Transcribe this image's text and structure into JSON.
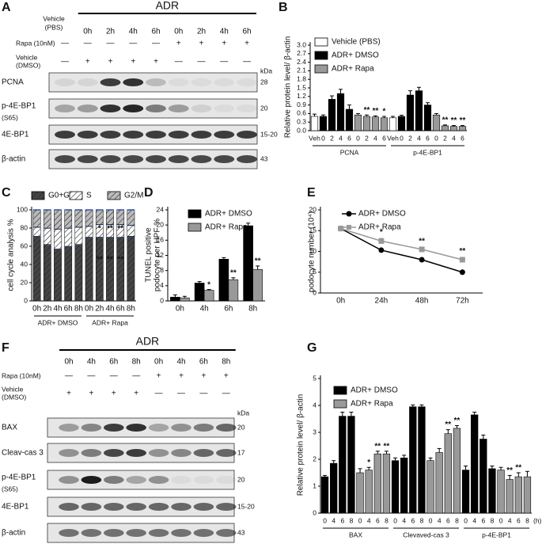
{
  "panel_labels": [
    "A",
    "B",
    "C",
    "D",
    "E",
    "F",
    "G"
  ],
  "blots": [
    {
      "header": "ADR",
      "first_lane": [
        "Vehicle",
        "(PBS)"
      ],
      "lanes": [
        "0h",
        "2h",
        "4h",
        "6h",
        "0h",
        "2h",
        "4h",
        "6h"
      ],
      "treatments": [
        {
          "label": [
            "Rapa (10nM)"
          ],
          "signs": [
            "—",
            "—",
            "—",
            "—",
            "—",
            "+",
            "+",
            "+",
            "+"
          ]
        },
        {
          "label": [
            "Vehicle",
            "(DMSO)"
          ],
          "signs": [
            "—",
            "+",
            "+",
            "+",
            "+",
            "—",
            "—",
            "—",
            "—"
          ]
        }
      ],
      "kda": "kDa",
      "rows": [
        {
          "label": [
            "PCNA"
          ],
          "size": "28"
        },
        {
          "label": [
            "p-4E-BP1",
            "(S65)"
          ],
          "size": "20"
        },
        {
          "label": [
            "4E-BP1"
          ],
          "size": "15-20"
        },
        {
          "label": [
            "β-actin"
          ],
          "size": "43"
        }
      ]
    },
    {
      "header": "ADR",
      "lanes": [
        "0h",
        "4h",
        "6h",
        "8h",
        "0h",
        "4h",
        "6h",
        "8h"
      ],
      "treatments": [
        {
          "label": [
            "Rapa (10nM)"
          ],
          "signs": [
            "—",
            "—",
            "—",
            "—",
            "+",
            "+",
            "+",
            "+"
          ]
        },
        {
          "label": [
            "Vehicle",
            "(DMSO)"
          ],
          "signs": [
            "+",
            "+",
            "+",
            "+",
            "—",
            "—",
            "—",
            "—"
          ]
        }
      ],
      "kda": "kDa",
      "rows": [
        {
          "label": [
            "BAX"
          ],
          "size": "20"
        },
        {
          "label": [
            "Cleav-cas 3"
          ],
          "size": "17"
        },
        {
          "label": [
            "p-4E-BP1",
            "(S65)"
          ],
          "size": "20"
        },
        {
          "label": [
            "4E-BP1"
          ],
          "size": "15-20"
        },
        {
          "label": [
            "β-actin"
          ],
          "size": "43"
        }
      ]
    }
  ],
  "chart_data": [
    {
      "type": "bar",
      "ylabel": [
        "Relative protein level/ β-actin"
      ],
      "categories": [
        "Veh",
        "0",
        "2",
        "4",
        "6",
        "0",
        "2",
        "4",
        "6",
        "Veh",
        "0",
        "2",
        "4",
        "6",
        "0",
        "2",
        "4",
        "6"
      ],
      "groups": [
        "PCNA",
        "p-4E-BP1"
      ],
      "ylim": [
        0,
        3.0
      ],
      "yticks": [
        {
          "value": 0,
          "label": "0.0"
        },
        0.3,
        0.6,
        0.9,
        1.2,
        1.5,
        1.8,
        2.1,
        2.4,
        2.7,
        {
          "value": 3.0,
          "label": "3.0"
        }
      ],
      "series": [
        {
          "name": "Vehicle (PBS)",
          "color": "#ffffff",
          "values": [
            0.5,
            null,
            null,
            null,
            null,
            null,
            null,
            null,
            null,
            0.45,
            null,
            null,
            null,
            null,
            null,
            null,
            null,
            null
          ],
          "errors": [
            0.08,
            null,
            null,
            null,
            null,
            null,
            null,
            null,
            null,
            0.05,
            null,
            null,
            null,
            null,
            null,
            null,
            null,
            null
          ]
        },
        {
          "name": "ADR+ DMSO",
          "color": "#000000",
          "values": [
            null,
            0.5,
            1.1,
            1.3,
            0.75,
            null,
            null,
            null,
            null,
            null,
            0.5,
            1.25,
            1.4,
            0.9,
            null,
            null,
            null,
            null
          ],
          "errors": [
            null,
            0.05,
            0.12,
            0.15,
            0.15,
            null,
            null,
            null,
            null,
            null,
            0.04,
            0.15,
            0.12,
            0.08,
            null,
            null,
            null,
            null
          ]
        },
        {
          "name": "ADR+ Rapa",
          "color": "#999999",
          "values": [
            null,
            null,
            null,
            null,
            null,
            0.55,
            0.5,
            0.48,
            0.45,
            null,
            null,
            null,
            null,
            null,
            0.55,
            0.17,
            0.15,
            0.15
          ],
          "errors": [
            null,
            null,
            null,
            null,
            null,
            0.05,
            0.05,
            0.04,
            0.05,
            null,
            null,
            null,
            null,
            null,
            0.05,
            0.03,
            0.03,
            0.03
          ],
          "stars": [
            null,
            null,
            null,
            null,
            null,
            null,
            "**",
            "**",
            "*",
            null,
            null,
            null,
            null,
            null,
            null,
            "**",
            "**",
            "**"
          ]
        }
      ]
    },
    {
      "type": "stacked_bar",
      "ylabel": [
        "cell cycle analysis %"
      ],
      "categories": [
        "0h",
        "2h",
        "4h",
        "6h",
        "8h",
        "0h",
        "2h",
        "4h",
        "6h",
        "8h"
      ],
      "groups": [
        "ADR+ DMSO",
        "ADR+ Rapa"
      ],
      "ylim": [
        0,
        100
      ],
      "yticks": [
        0,
        20,
        40,
        60,
        80,
        100
      ],
      "series": [
        {
          "name": "G0+G1",
          "color": "#444444",
          "values": [
            71,
            62,
            57,
            60,
            62,
            70,
            70,
            70,
            70,
            71
          ],
          "stars": [
            null,
            null,
            null,
            null,
            null,
            null,
            "**",
            "**",
            "**",
            null
          ]
        },
        {
          "name": "S",
          "color": "#ffffff",
          "values": [
            10,
            18,
            22,
            20,
            19,
            12,
            14,
            14,
            14,
            12
          ],
          "stars": [
            null,
            null,
            null,
            null,
            null,
            null,
            "*",
            "**",
            "**",
            null
          ]
        },
        {
          "name": "G2/M",
          "color": "#bbbbbb",
          "values": [
            19,
            20,
            21,
            20,
            19,
            18,
            16,
            16,
            16,
            17
          ]
        }
      ]
    },
    {
      "type": "bar",
      "ylabel": [
        "TUNEL positive",
        "podocyte per HPF %"
      ],
      "categories": [
        "0h",
        "4h",
        "6h",
        "8h"
      ],
      "ylim": [
        0,
        24
      ],
      "yticks": [
        0,
        4,
        8,
        12,
        16,
        20,
        24
      ],
      "series": [
        {
          "name": "ADR+ DMSO",
          "color": "#000000",
          "values": [
            1.0,
            4.7,
            11,
            19.8
          ],
          "errors": [
            0.6,
            0.4,
            0.4,
            0.7
          ]
        },
        {
          "name": "ADR+ Rapa",
          "color": "#999999",
          "values": [
            0.8,
            2.8,
            5.6,
            8.3
          ],
          "errors": [
            0.4,
            0.2,
            0.5,
            0.9
          ],
          "stars": [
            null,
            "*",
            "**",
            "**"
          ]
        }
      ]
    },
    {
      "type": "line",
      "ylabel": [
        "podocyte number (10⁴)"
      ],
      "categories": [
        "0h",
        "24h",
        "48h",
        "72h"
      ],
      "ylim": [
        0,
        20
      ],
      "yticks": [
        0,
        5,
        10,
        15,
        20
      ],
      "series": [
        {
          "name": "ADR+ DMSO",
          "color": "#000000",
          "marker": "circle",
          "values": [
            15.5,
            10.3,
            8,
            5
          ],
          "errors": [
            0.3,
            0.3,
            0.2,
            0.3
          ]
        },
        {
          "name": "ADR+ Rapa",
          "color": "#999999",
          "marker": "square",
          "values": [
            15.5,
            12.5,
            10.5,
            8
          ],
          "errors": [
            0.3,
            0.6,
            0.4,
            0.5
          ],
          "stars": [
            null,
            "*",
            "**",
            "**"
          ]
        }
      ]
    },
    {
      "type": "bar",
      "ylabel": [
        "Relative protein level/ β-actin"
      ],
      "categories": [
        "0",
        "4",
        "6",
        "8",
        "0",
        "4",
        "6",
        "8",
        "0",
        "4",
        "6",
        "8",
        "0",
        "4",
        "6",
        "8",
        "0",
        "4",
        "6",
        "8",
        "0",
        "4",
        "6",
        "8"
      ],
      "groups": [
        "BAX",
        "Clevaved-cas 3",
        "p-4E-BP1"
      ],
      "x_unit": "(h)",
      "ylim": [
        0,
        5
      ],
      "yticks": [
        0,
        1,
        2,
        3,
        4,
        5
      ],
      "series": [
        {
          "name": "ADR+ DMSO",
          "color": "#000000",
          "values": [
            1.35,
            1.85,
            3.6,
            3.6,
            null,
            null,
            null,
            null,
            1.95,
            2.05,
            3.95,
            3.95,
            null,
            null,
            null,
            null,
            1.6,
            3.65,
            2.75,
            1.65,
            null,
            null,
            null,
            null
          ],
          "errors": [
            0.05,
            0.1,
            0.15,
            0.15,
            null,
            null,
            null,
            null,
            0.1,
            0.1,
            0.07,
            0.07,
            null,
            null,
            null,
            null,
            0.15,
            0.1,
            0.15,
            0.1,
            null,
            null,
            null,
            null
          ]
        },
        {
          "name": "ADR+ Rapa",
          "color": "#999999",
          "values": [
            null,
            null,
            null,
            null,
            1.5,
            1.6,
            2.2,
            2.2,
            null,
            null,
            null,
            null,
            1.95,
            2.25,
            2.95,
            3.15,
            null,
            null,
            null,
            null,
            1.6,
            1.25,
            1.35,
            1.35
          ],
          "errors": [
            null,
            null,
            null,
            null,
            0.15,
            0.1,
            0.1,
            0.1,
            null,
            null,
            null,
            null,
            0.1,
            0.15,
            0.15,
            0.1,
            null,
            null,
            null,
            null,
            0.1,
            0.15,
            0.15,
            0.2
          ],
          "stars": [
            null,
            null,
            null,
            null,
            null,
            "*",
            "**",
            "**",
            null,
            null,
            null,
            null,
            null,
            null,
            "**",
            "**",
            null,
            null,
            null,
            null,
            null,
            "**",
            "**",
            null
          ]
        }
      ]
    }
  ]
}
